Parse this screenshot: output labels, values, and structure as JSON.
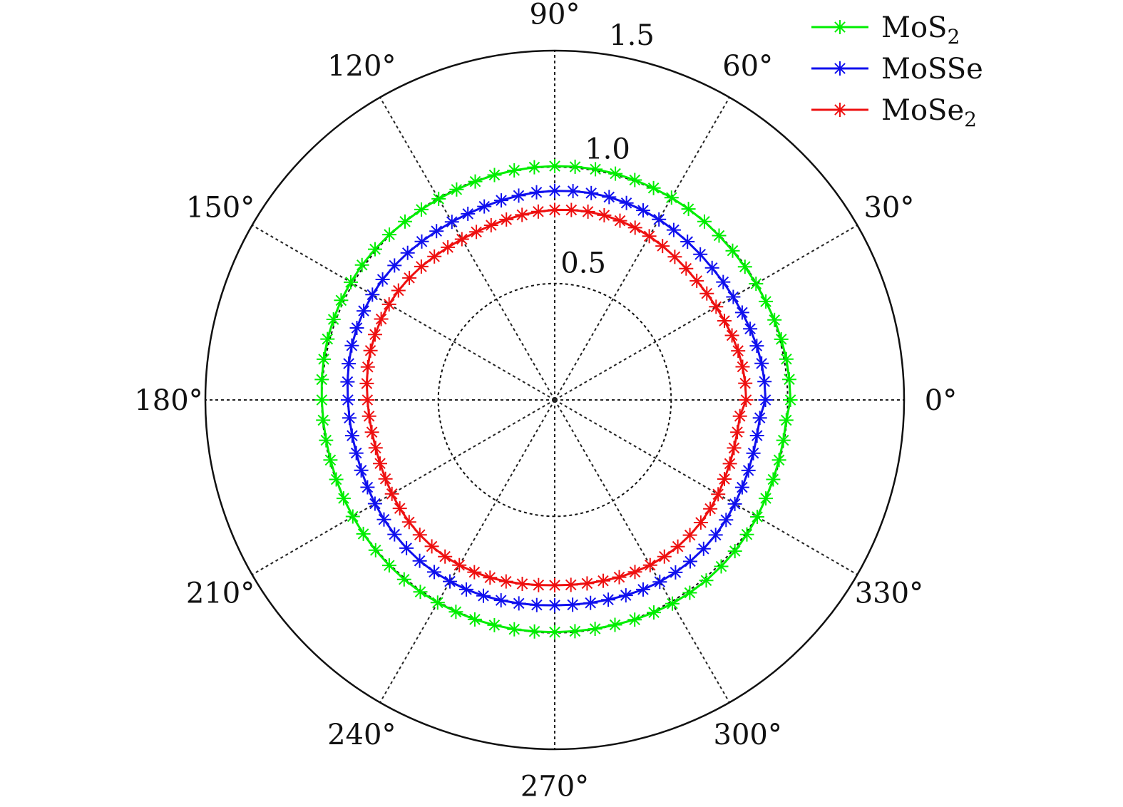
{
  "chart_data": {
    "type": "polar",
    "title": "",
    "angle_unit": "degrees",
    "angle_ticks": [
      {
        "angle": 0,
        "label": "0°"
      },
      {
        "angle": 30,
        "label": "30°"
      },
      {
        "angle": 60,
        "label": "60°"
      },
      {
        "angle": 90,
        "label": "90°"
      },
      {
        "angle": 120,
        "label": "120°"
      },
      {
        "angle": 150,
        "label": "150°"
      },
      {
        "angle": 180,
        "label": "180°"
      },
      {
        "angle": 210,
        "label": "210°"
      },
      {
        "angle": 240,
        "label": "240°"
      },
      {
        "angle": 270,
        "label": "270°"
      },
      {
        "angle": 300,
        "label": "300°"
      },
      {
        "angle": 330,
        "label": "330°"
      }
    ],
    "radial_ticks": [
      {
        "value": 0.5,
        "label": "0.5"
      },
      {
        "value": 1.0,
        "label": "1.0"
      },
      {
        "value": 1.5,
        "label": "1.5"
      }
    ],
    "rlim": [
      0,
      1.5
    ],
    "grid": true,
    "legend_position": "top-right",
    "marker": "asterisk",
    "angle_step": 5,
    "series": [
      {
        "name_base": "MoS",
        "name_sub": "2",
        "color": "#00ee00",
        "r": [
          1.012,
          1.011,
          1.01,
          1.007,
          1.004,
          1.0,
          0.998,
          0.997,
          0.997,
          0.998,
          1.0,
          1.001,
          1.003,
          1.004,
          1.005,
          1.006,
          1.006,
          1.005,
          1.004,
          1.003,
          1.001,
          1.0,
          0.998,
          0.997,
          0.997,
          0.998,
          1.0,
          1.004,
          1.007,
          1.01,
          1.011,
          1.012,
          1.011,
          1.01,
          1.007,
          1.004,
          1.0,
          0.998,
          0.997,
          0.997,
          0.998,
          1.0,
          1.001,
          1.003,
          1.004,
          1.005,
          1.006,
          1.006,
          1.005,
          1.004,
          1.003,
          1.001,
          1.0,
          0.998,
          0.997,
          0.997,
          0.998,
          1.0,
          1.004,
          1.007,
          1.01,
          1.011,
          1.012,
          1.011,
          1.01,
          1.007,
          1.004,
          1.0,
          0.998,
          0.997,
          0.997,
          0.998
        ]
      },
      {
        "name_base": "MoSSe",
        "name_sub": "",
        "color": "#1010ee",
        "r": [
          0.905,
          0.904,
          0.902,
          0.898,
          0.893,
          0.888,
          0.885,
          0.883,
          0.882,
          0.884,
          0.887,
          0.891,
          0.895,
          0.898,
          0.9,
          0.902,
          0.902,
          0.9,
          0.898,
          0.895,
          0.891,
          0.887,
          0.884,
          0.882,
          0.883,
          0.885,
          0.888,
          0.893,
          0.898,
          0.902,
          0.904,
          0.905,
          0.904,
          0.902,
          0.898,
          0.893,
          0.888,
          0.885,
          0.883,
          0.882,
          0.884,
          0.887,
          0.891,
          0.895,
          0.898,
          0.9,
          0.902,
          0.902,
          0.9,
          0.898,
          0.895,
          0.891,
          0.887,
          0.884,
          0.882,
          0.883,
          0.885,
          0.888,
          0.893,
          0.898,
          0.902,
          0.904,
          0.905,
          0.904,
          0.902,
          0.898,
          0.893,
          0.888,
          0.885,
          0.883,
          0.882,
          0.884
        ]
      },
      {
        "name_base": "MoSe",
        "name_sub": "2",
        "color": "#ee1010",
        "r": [
          0.822,
          0.821,
          0.819,
          0.815,
          0.81,
          0.804,
          0.8,
          0.797,
          0.796,
          0.798,
          0.802,
          0.807,
          0.812,
          0.816,
          0.819,
          0.821,
          0.821,
          0.819,
          0.816,
          0.812,
          0.807,
          0.802,
          0.798,
          0.796,
          0.797,
          0.8,
          0.804,
          0.81,
          0.815,
          0.819,
          0.821,
          0.822,
          0.821,
          0.819,
          0.815,
          0.81,
          0.804,
          0.8,
          0.797,
          0.796,
          0.798,
          0.802,
          0.807,
          0.812,
          0.816,
          0.819,
          0.821,
          0.821,
          0.819,
          0.816,
          0.812,
          0.807,
          0.802,
          0.798,
          0.796,
          0.797,
          0.8,
          0.804,
          0.81,
          0.815,
          0.819,
          0.821,
          0.822,
          0.821,
          0.819,
          0.815,
          0.81,
          0.804,
          0.8,
          0.797,
          0.796,
          0.798
        ]
      }
    ]
  }
}
